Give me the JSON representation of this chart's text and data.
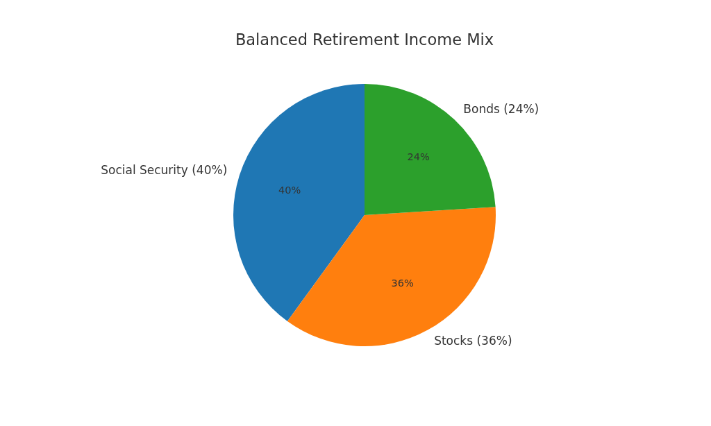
{
  "chart_data": {
    "type": "pie",
    "title": "Balanced Retirement Income Mix",
    "categories": [
      "Social Security (40%)",
      "Stocks (36%)",
      "Bonds (24%)"
    ],
    "values": [
      40,
      36,
      24
    ],
    "colors": [
      "#1f77b4",
      "#ff7f0e",
      "#2ca02c"
    ],
    "value_labels": [
      "40%",
      "36%",
      "24%"
    ]
  }
}
